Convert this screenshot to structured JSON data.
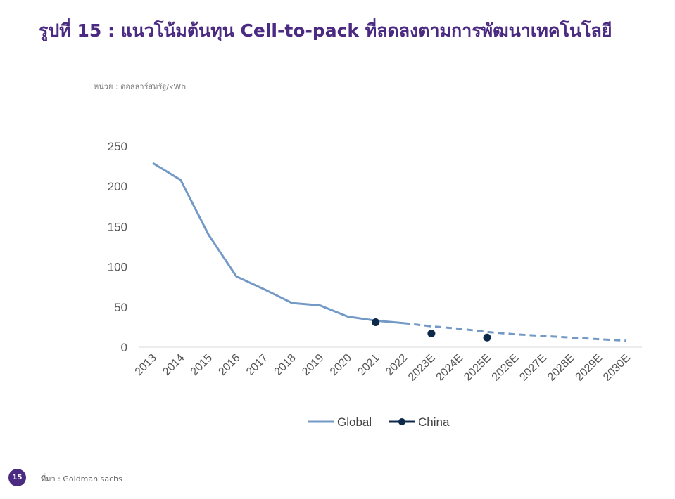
{
  "page": {
    "title": "รูปที่ 15 : แนวโน้มต้นทุน Cell-to-pack ที่ลดลงตามการพัฒนาเทคโนโลยี",
    "unit": "หน่วย : ดอลลาร์สหรัฐ/kWh",
    "page_number": "15",
    "source": "ที่มา : Goldman sachs",
    "colors": {
      "title": "#4b2a82",
      "global": "#7399c6",
      "china": "#0d2a4a",
      "badge": "#4b2a82"
    }
  },
  "chart_data": {
    "type": "line",
    "categories": [
      "2013",
      "2014",
      "2015",
      "2016",
      "2017",
      "2018",
      "2019",
      "2020",
      "2021",
      "2022",
      "2023E",
      "2024E",
      "2025E",
      "2026E",
      "2027E",
      "2028E",
      "2029E",
      "2030E"
    ],
    "series": [
      {
        "name": "Global",
        "values": [
          229,
          208,
          140,
          88,
          72,
          55,
          52,
          38,
          33,
          30,
          26,
          23,
          19,
          16,
          14,
          12,
          10,
          8
        ],
        "style": "line",
        "solid_through": "2022",
        "dashed_from": "2022"
      },
      {
        "name": "China",
        "values": [
          null,
          null,
          null,
          null,
          null,
          null,
          null,
          null,
          31,
          null,
          17,
          null,
          12,
          null,
          null,
          null,
          null,
          null
        ],
        "style": "markers"
      }
    ],
    "yticks": [
      0,
      50,
      100,
      150,
      200,
      250
    ],
    "ylim": [
      0,
      250
    ],
    "grid": false,
    "legend_position": "bottom"
  }
}
